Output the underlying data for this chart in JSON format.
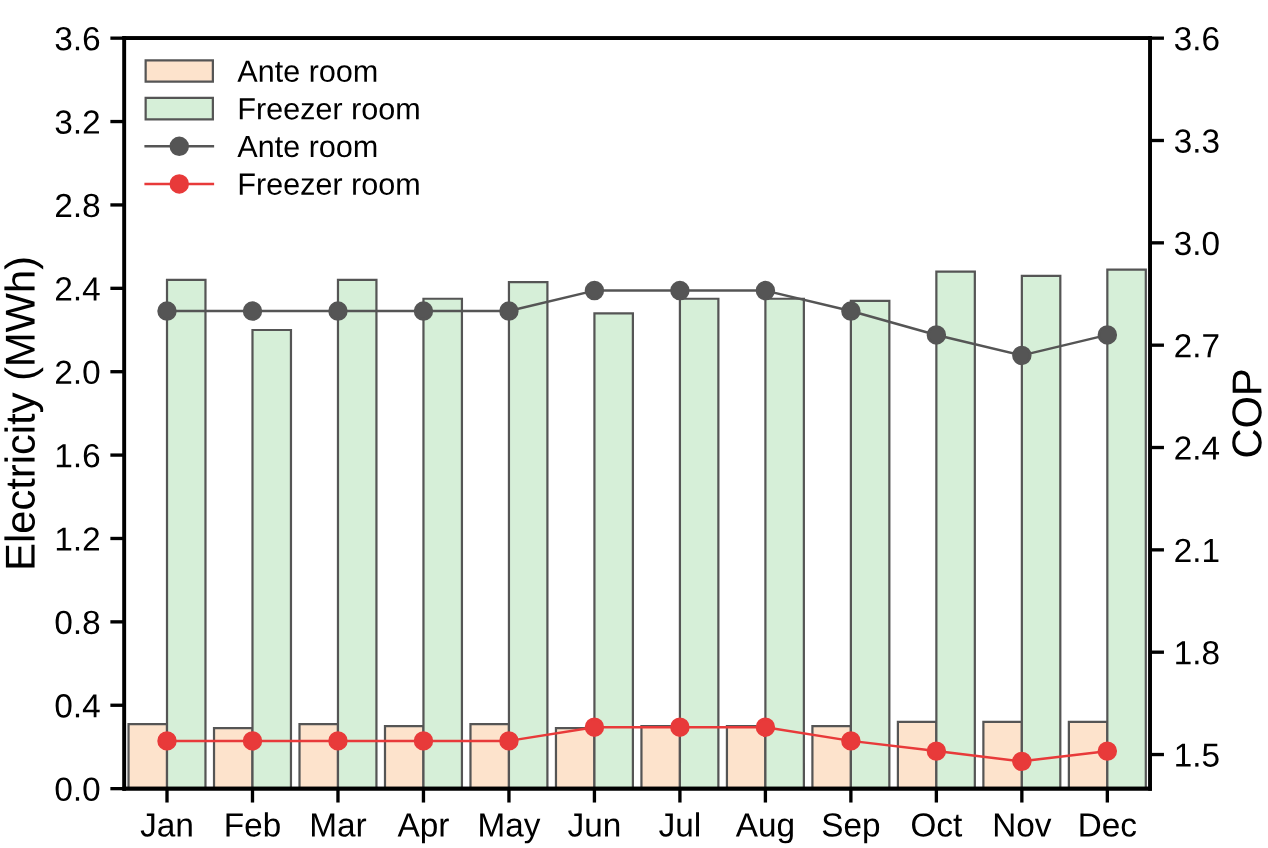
{
  "chart_data": {
    "type": "bar",
    "ylabel": "Electricity (MWh)",
    "y2label": "COP",
    "categories": [
      "Jan",
      "Feb",
      "Mar",
      "Apr",
      "May",
      "Jun",
      "Jul",
      "Aug",
      "Sep",
      "Oct",
      "Nov",
      "Dec"
    ],
    "series": [
      {
        "name": "Ante room",
        "color": "#fde3cc",
        "values": [
          0.31,
          0.29,
          0.31,
          0.3,
          0.31,
          0.29,
          0.3,
          0.3,
          0.3,
          0.32,
          0.32,
          0.32
        ]
      },
      {
        "name": "Freezer room",
        "color": "#d6efd8",
        "values": [
          2.44,
          2.2,
          2.44,
          2.35,
          2.43,
          2.28,
          2.35,
          2.35,
          2.34,
          2.48,
          2.46,
          2.49
        ]
      },
      {
        "name": "Ante room",
        "type": "line",
        "axis": "y2",
        "color": "#555555",
        "marker": "circle",
        "values": [
          2.8,
          2.8,
          2.8,
          2.8,
          2.8,
          2.86,
          2.86,
          2.86,
          2.8,
          2.73,
          2.67,
          2.73
        ]
      },
      {
        "name": "Freezer room",
        "type": "line",
        "axis": "y2",
        "color": "#e83a3a",
        "marker": "circle",
        "values": [
          1.54,
          1.54,
          1.54,
          1.54,
          1.54,
          1.58,
          1.58,
          1.58,
          1.54,
          1.51,
          1.48,
          1.51
        ]
      }
    ],
    "ylim": [
      0,
      3.6
    ],
    "yticks": [
      {
        "value": 0,
        "label": "0.0"
      },
      0.4,
      0.8,
      1.2,
      1.6,
      {
        "value": 2,
        "label": "2.0"
      },
      2.4,
      2.8,
      3.2,
      3.6
    ],
    "y2lim": [
      1.4,
      3.6
    ],
    "y2ticks": [
      1.5,
      1.8,
      2.1,
      2.4,
      2.7,
      {
        "value": 3,
        "label": "3.0"
      },
      3.3,
      3.6
    ],
    "legend": "top left",
    "grid": false
  }
}
